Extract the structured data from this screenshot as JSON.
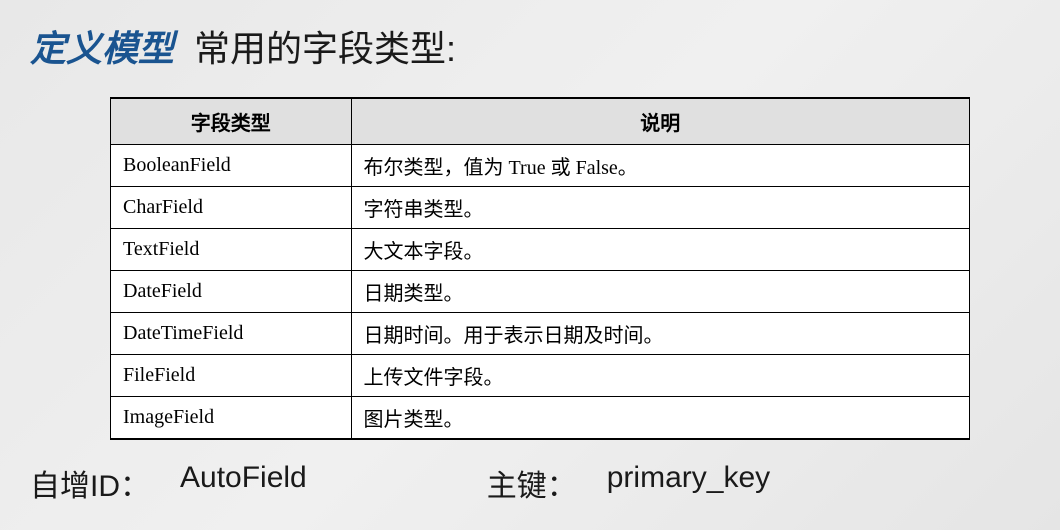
{
  "header": {
    "title_blue": "定义模型",
    "title_black": "常用的字段类型:"
  },
  "table": {
    "columns": [
      "字段类型",
      "说明"
    ],
    "rows": [
      [
        "BooleanField",
        "布尔类型，值为 True 或 False。"
      ],
      [
        "CharField",
        "字符串类型。"
      ],
      [
        "TextField",
        "大文本字段。"
      ],
      [
        "DateField",
        "日期类型。"
      ],
      [
        "DateTimeField",
        "日期时间。用于表示日期及时间。"
      ],
      [
        "FileField",
        "上传文件字段。"
      ],
      [
        "ImageField",
        "图片类型。"
      ]
    ],
    "header_bg": "#e0e0e0",
    "border_color": "#000000",
    "col_widths": [
      "28%",
      "72%"
    ]
  },
  "footer": {
    "item1_label": "自增ID：",
    "item1_value": "AutoField",
    "item2_label": "主键：",
    "item2_value": "primary_key"
  },
  "colors": {
    "title_blue": "#1a5490",
    "title_black": "#1a1a1a",
    "background": "#e8e8e8"
  }
}
